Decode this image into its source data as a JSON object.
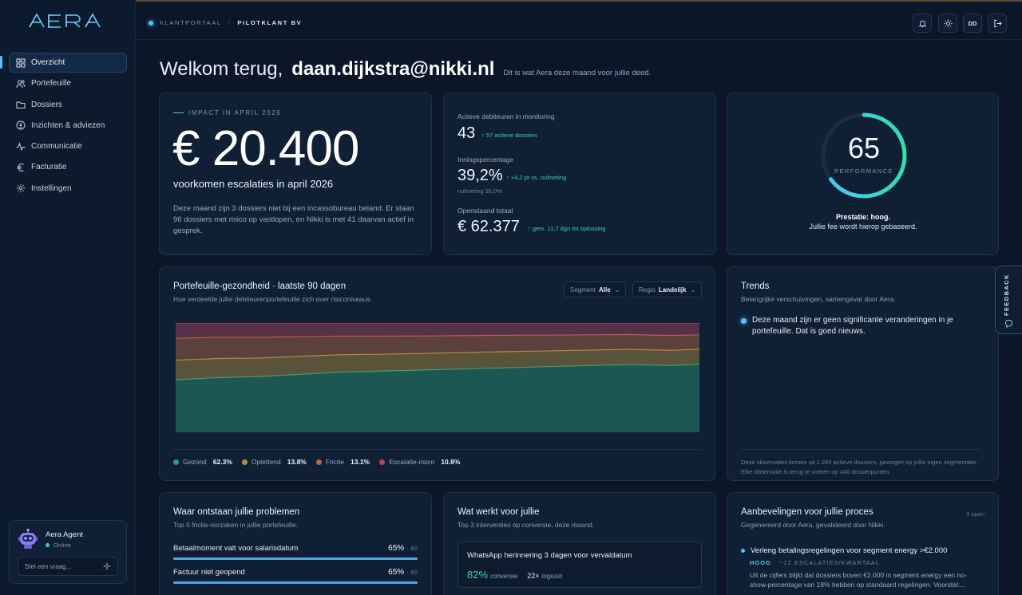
{
  "app": {
    "logo": "AERA"
  },
  "topbar": {
    "breadcrumb_root": "KLANTPORTAAL",
    "breadcrumb_current": "PILOTKLANT BV",
    "user_initials": "DD",
    "icons": [
      "bell-icon",
      "sun-icon",
      "logout-icon"
    ]
  },
  "sidebar": {
    "items": [
      {
        "label": "Overzicht",
        "icon": "grid-icon",
        "active": true
      },
      {
        "label": "Portefeuille",
        "icon": "users-icon"
      },
      {
        "label": "Dossiers",
        "icon": "folder-icon"
      },
      {
        "label": "Inzichten & adviezen",
        "icon": "bulb-icon"
      },
      {
        "label": "Communicatie",
        "icon": "pulse-icon"
      },
      {
        "label": "Facturatie",
        "icon": "euro-icon"
      },
      {
        "label": "Instellingen",
        "icon": "gear-icon"
      }
    ],
    "agent": {
      "name": "Aera Agent",
      "status": "Online",
      "placeholder": "Stel een vraag..."
    }
  },
  "welcome": {
    "greeting": "Welkom terug,",
    "user": "daan.dijkstra@nikki.nl",
    "subtitle": "Dit is wat Aera deze maand voor jullie deed."
  },
  "impact": {
    "label": "IMPACT IN APRIL 2026",
    "value": "€ 20.400",
    "subtitle": "voorkomen escalaties in april 2026",
    "description": "Deze maand zijn 3 dossiers niet bij een incassobureau beland. Er staan 96 dossiers met risico op vastlopen, en Nikki is met 41 daarvan actief in gesprek."
  },
  "kpis": [
    {
      "label": "Actieve debiteuren in monitoring",
      "value": "43",
      "delta": "57 actieve dossiers",
      "note": ""
    },
    {
      "label": "Inningspercentage",
      "value": "39,2%",
      "delta": "+4,2 pt vs. nulmeting",
      "note": "nulmeting 35,0%"
    },
    {
      "label": "Openstaand totaal",
      "value": "€ 62.377",
      "delta": "gem. 11,7 dgn tot oplossing",
      "note": ""
    }
  ],
  "performance": {
    "score": "65",
    "score_value": 65,
    "label": "PERFORMANCE",
    "text_bold": "Prestatie: hoog.",
    "text": "Jullie fee wordt hierop gebaseerd.",
    "colors": [
      "#4fc3f7",
      "#2ee0b0"
    ]
  },
  "health": {
    "title": "Portefeuille-gezondheid · laatste 90 dagen",
    "subtitle": "Hoe verdeelde jullie debiteurenportefeuille zich over risiconiveaus.",
    "filters": [
      {
        "label": "Segment",
        "value": "Alle"
      },
      {
        "label": "Regio",
        "value": "Landelijk"
      }
    ],
    "legend": [
      {
        "name": "Gezond",
        "value": "62.3%",
        "color": "#2f9b78"
      },
      {
        "name": "Oplettend",
        "value": "13.8%",
        "color": "#b3923f"
      },
      {
        "name": "Frictie",
        "value": "13.1%",
        "color": "#b56a43"
      },
      {
        "name": "Escalatie-risico",
        "value": "10.8%",
        "color": "#b0475d"
      }
    ]
  },
  "chart_data": {
    "type": "area",
    "stacked": true,
    "normalized": true,
    "x": [
      1,
      8,
      15,
      22,
      29,
      36,
      43,
      50,
      57,
      64,
      71,
      78,
      85,
      90
    ],
    "series": [
      {
        "name": "Gezond",
        "values": [
          48,
          50,
          51,
          53,
          55,
          56,
          57,
          58,
          59,
          60,
          61,
          62,
          61,
          62.3
        ],
        "color": "#2f9b78"
      },
      {
        "name": "Oplettend",
        "values": [
          18,
          17.5,
          17,
          16.5,
          16,
          15.5,
          15.2,
          15,
          14.8,
          14.5,
          14.2,
          14,
          14,
          13.8
        ],
        "color": "#b3923f"
      },
      {
        "name": "Frictie",
        "values": [
          20,
          19.5,
          19,
          18,
          17,
          16.5,
          16,
          15.5,
          15,
          14.5,
          14,
          13.5,
          13.6,
          13.1
        ],
        "color": "#b56a43"
      },
      {
        "name": "Escalatie-risico",
        "values": [
          14,
          13,
          13,
          12.5,
          12,
          12,
          11.8,
          11.5,
          11.2,
          11,
          10.8,
          10.5,
          11.4,
          10.8
        ],
        "color": "#b0475d"
      }
    ],
    "ylim": [
      0,
      100
    ]
  },
  "trends": {
    "title": "Trends",
    "subtitle": "Belangrijke verschuivingen, samengevat door Aera.",
    "item": "Deze maand zijn er geen significante veranderingen in je portefeuille. Dat is goed nieuws.",
    "footnote": "Deze observaties komen uit 1.284 actieve dossiers, gewogen op jullie eigen segmentatie. Elke observatie is terug te voeren op ≥40 dossierpunten."
  },
  "feedback": "FEEDBACK",
  "problems": {
    "title": "Waar ontstaan jullie problemen",
    "subtitle": "Top 5 frictie-oorzaken in jullie portefeuille.",
    "items": [
      {
        "label": "Betaalmoment valt voor salarisdatum",
        "pct": "65%",
        "count": "60",
        "fraction": 1.0
      },
      {
        "label": "Factuur niet geopend",
        "pct": "65%",
        "count": "60",
        "fraction": 1.0
      }
    ]
  },
  "works": {
    "title": "Wat werkt voor jullie",
    "subtitle": "Top 3 interventies op conversie, deze maand.",
    "item": {
      "title": "WhatsApp herinnering 3 dagen voor vervaldatum",
      "conversion": "82%",
      "conversion_label": "conversie",
      "count": "22×",
      "count_label": "ingezet"
    }
  },
  "recommendations": {
    "title": "Aanbevelingen voor jullie proces",
    "subtitle": "Gegenereerd door Aera, gevalideerd door Nikki.",
    "count": "3 open",
    "item": {
      "title": "Verleng betalingsregelingen voor segment energy >€2.000",
      "priority": "HOOG",
      "meta": "~12 ESCALATIES/KWARTAAL",
      "description": "Uit de cijfers blijkt dat dossiers boven €2.000 in segment energy een no-show-percentage van 18% hebben op standaard regelingen. Voorstel:..."
    }
  }
}
